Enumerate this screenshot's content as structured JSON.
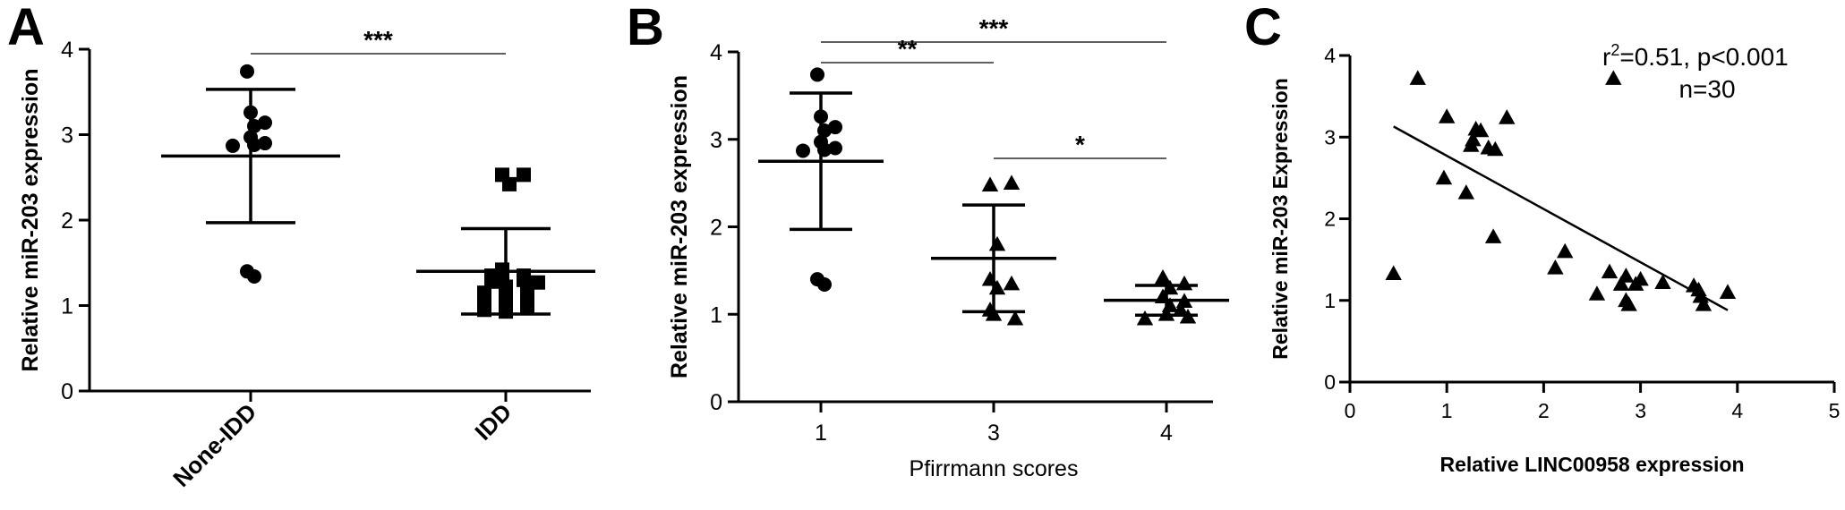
{
  "panels": {
    "A": {
      "letter": "A"
    },
    "B": {
      "letter": "B"
    },
    "C": {
      "letter": "C"
    }
  },
  "chart_data": [
    {
      "type": "scatter",
      "panel": "A",
      "ylabel": "Relative miR-203 expression",
      "xlabel": "",
      "ylim": [
        0,
        4
      ],
      "yticks": [
        "0",
        "1",
        "2",
        "3",
        "4"
      ],
      "categories": [
        "None-IDD",
        "IDD"
      ],
      "groups": [
        {
          "category": "None-IDD",
          "marker": "circle",
          "mean": 2.75,
          "sd": 0.78,
          "points": [
            3.74,
            3.26,
            3.1,
            3.14,
            2.97,
            2.88,
            2.9,
            2.87,
            1.34,
            1.4
          ]
        },
        {
          "category": "IDD",
          "marker": "square",
          "mean": 1.4,
          "sd": 0.5,
          "points": [
            2.53,
            2.53,
            2.42,
            1.42,
            1.35,
            1.35,
            1.3,
            1.3,
            1.28,
            1.27,
            1.22,
            1.18,
            1.15,
            1.1,
            1.08,
            1.05,
            1.0,
            0.97,
            0.95,
            0.93
          ]
        }
      ],
      "significance": [
        {
          "from": "None-IDD",
          "to": "IDD",
          "label": "***"
        }
      ]
    },
    {
      "type": "scatter",
      "panel": "B",
      "ylabel": "Relative miR-203 expression",
      "xlabel": "Pfirrmann scores",
      "ylim": [
        0,
        4
      ],
      "yticks": [
        "0",
        "1",
        "2",
        "3",
        "4"
      ],
      "categories": [
        "1",
        "3",
        "4"
      ],
      "groups": [
        {
          "category": "1",
          "marker": "circle",
          "mean": 2.75,
          "sd": 0.78,
          "points": [
            3.74,
            3.26,
            3.1,
            3.14,
            2.97,
            2.88,
            2.9,
            2.87,
            1.34,
            1.4
          ]
        },
        {
          "category": "3",
          "marker": "triangle",
          "mean": 1.64,
          "sd": 0.61,
          "points": [
            2.48,
            2.5,
            1.8,
            1.4,
            1.35,
            1.3,
            1.05,
            1.0,
            0.95
          ]
        },
        {
          "category": "4",
          "marker": "triangle",
          "mean": 1.16,
          "sd": 0.17,
          "points": [
            1.42,
            1.35,
            1.3,
            1.2,
            1.15,
            1.1,
            1.05,
            1.0,
            0.97,
            0.95
          ]
        }
      ],
      "significance": [
        {
          "from": "1",
          "to": "3",
          "label": "**"
        },
        {
          "from": "1",
          "to": "4",
          "label": "***"
        },
        {
          "from": "3",
          "to": "4",
          "label": "*"
        }
      ]
    },
    {
      "type": "scatter",
      "panel": "C",
      "ylabel": "Relative miR-203 Expression",
      "xlabel": "Relative LINC00958 expression",
      "xlim": [
        0,
        5
      ],
      "ylim": [
        0,
        4
      ],
      "xticks": [
        "0",
        "1",
        "2",
        "3",
        "4",
        "5"
      ],
      "yticks": [
        "0",
        "1",
        "2",
        "3",
        "4"
      ],
      "annotation": {
        "stat": "r²=0.51, p<0.001",
        "n": "n=30"
      },
      "points": [
        [
          0.45,
          1.33
        ],
        [
          0.7,
          3.72
        ],
        [
          0.97,
          2.5
        ],
        [
          1.0,
          3.25
        ],
        [
          1.2,
          2.32
        ],
        [
          1.25,
          2.9
        ],
        [
          1.27,
          2.97
        ],
        [
          1.3,
          3.1
        ],
        [
          1.35,
          3.08
        ],
        [
          1.43,
          2.87
        ],
        [
          1.48,
          1.78
        ],
        [
          1.5,
          2.85
        ],
        [
          1.62,
          3.24
        ],
        [
          2.12,
          1.4
        ],
        [
          2.22,
          1.6
        ],
        [
          2.55,
          1.08
        ],
        [
          2.68,
          1.35
        ],
        [
          2.72,
          3.72
        ],
        [
          2.8,
          1.2
        ],
        [
          2.85,
          1.3
        ],
        [
          2.85,
          1.0
        ],
        [
          2.88,
          0.95
        ],
        [
          2.95,
          1.2
        ],
        [
          3.0,
          1.26
        ],
        [
          3.23,
          1.22
        ],
        [
          3.55,
          1.18
        ],
        [
          3.6,
          1.13
        ],
        [
          3.62,
          1.05
        ],
        [
          3.65,
          0.95
        ],
        [
          3.9,
          1.1
        ]
      ],
      "fit": {
        "x": [
          0.45,
          3.9
        ],
        "y": [
          3.13,
          0.88
        ]
      }
    }
  ]
}
